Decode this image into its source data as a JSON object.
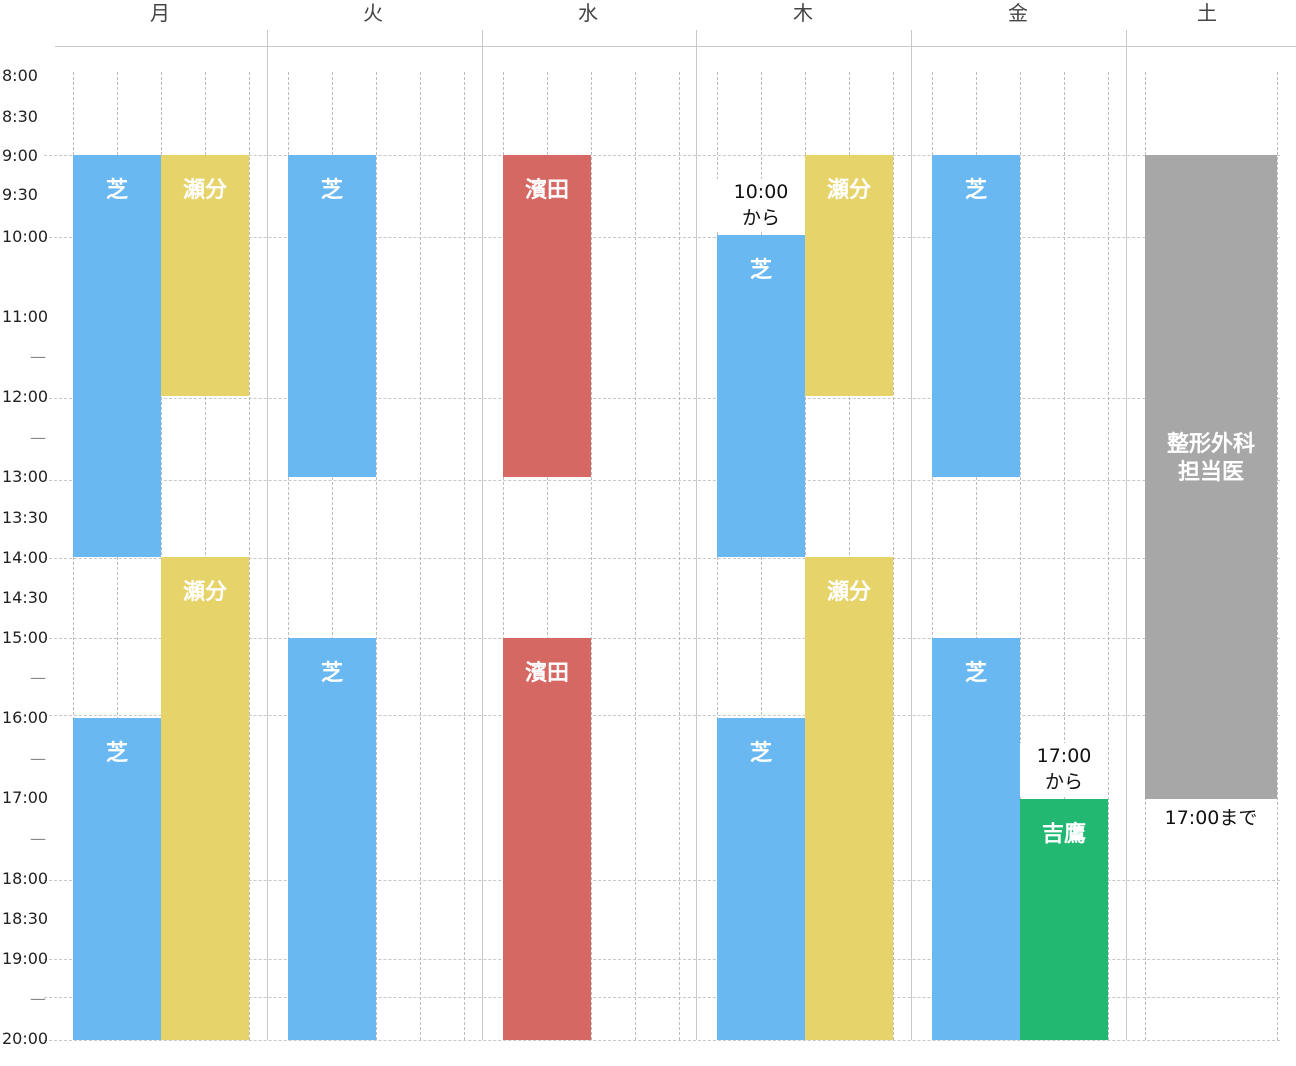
{
  "days": [
    "月",
    "火",
    "水",
    "木",
    "金",
    "土"
  ],
  "time_labels": [
    "8:00",
    "8:30",
    "9:00",
    "9:30",
    "10:00",
    "11:00",
    "—",
    "12:00",
    "—",
    "13:00",
    "13:30",
    "14:00",
    "14:30",
    "15:00",
    "—",
    "16:00",
    "—",
    "17:00",
    "—",
    "18:00",
    "18:30",
    "19:00",
    "—",
    "20:00"
  ],
  "blocks": [
    {
      "day": 0,
      "lane": 0,
      "start": "9:00",
      "end": "14:00",
      "label": "芝",
      "color": "#6ab8f2"
    },
    {
      "day": 0,
      "lane": 1,
      "start": "9:00",
      "end": "12:00",
      "label": "瀬分",
      "color": "#e6d36a"
    },
    {
      "day": 0,
      "lane": 1,
      "start": "14:00",
      "end": "20:00",
      "label": "瀬分",
      "color": "#e6d36a"
    },
    {
      "day": 0,
      "lane": 0,
      "start": "16:00",
      "end": "20:00",
      "label": "芝",
      "color": "#6ab8f2"
    },
    {
      "day": 1,
      "lane": 0,
      "start": "9:00",
      "end": "13:00",
      "label": "芝",
      "color": "#6ab8f2"
    },
    {
      "day": 1,
      "lane": 0,
      "start": "15:00",
      "end": "20:00",
      "label": "芝",
      "color": "#6ab8f2"
    },
    {
      "day": 2,
      "lane": 0,
      "start": "9:00",
      "end": "13:00",
      "label": "濱田",
      "color": "#d66863"
    },
    {
      "day": 2,
      "lane": 0,
      "start": "15:00",
      "end": "20:00",
      "label": "濱田",
      "color": "#d66863"
    },
    {
      "day": 3,
      "lane": 0,
      "start": "10:00",
      "end": "14:00",
      "label": "芝",
      "color": "#6ab8f2"
    },
    {
      "day": 3,
      "lane": 1,
      "start": "9:00",
      "end": "12:00",
      "label": "瀬分",
      "color": "#e6d36a"
    },
    {
      "day": 3,
      "lane": 1,
      "start": "14:00",
      "end": "20:00",
      "label": "瀬分",
      "color": "#e6d36a"
    },
    {
      "day": 3,
      "lane": 0,
      "start": "16:00",
      "end": "20:00",
      "label": "芝",
      "color": "#6ab8f2"
    },
    {
      "day": 4,
      "lane": 0,
      "start": "9:00",
      "end": "13:00",
      "label": "芝",
      "color": "#6ab8f2"
    },
    {
      "day": 4,
      "lane": 0,
      "start": "15:00",
      "end": "20:00",
      "label": "芝",
      "color": "#6ab8f2"
    },
    {
      "day": 4,
      "lane": 1,
      "start": "17:00",
      "end": "20:00",
      "label": "吉鷹",
      "color": "#22b872"
    },
    {
      "day": 5,
      "lane": "full",
      "start": "9:00",
      "end": "17:00",
      "label": "整形外科\n担当医",
      "color": "#a7a7a7"
    }
  ],
  "notes": [
    {
      "day": 3,
      "lane": 0,
      "anchor": "10:00",
      "text": "10:00\nから"
    },
    {
      "day": 4,
      "lane": 1,
      "anchor": "17:00",
      "text": "17:00\nから"
    },
    {
      "day": 5,
      "lane": "full",
      "anchor": "17:00",
      "text": "17:00まで"
    }
  ]
}
